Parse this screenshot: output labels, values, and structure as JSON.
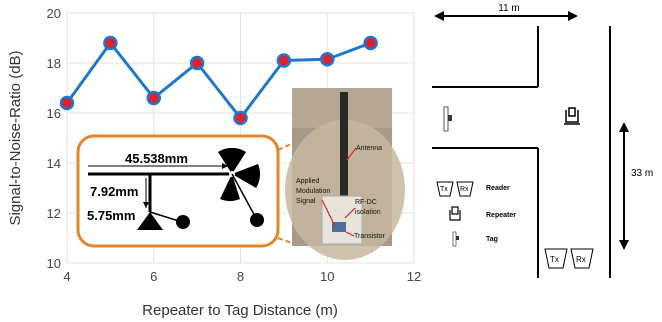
{
  "chart_data": {
    "type": "line",
    "xlabel": "Repeater to Tag Distance (m)",
    "ylabel": "Signal-to-Noise-Ratio (dB)",
    "xlim": [
      4,
      12
    ],
    "ylim": [
      10,
      20
    ],
    "xticks": [
      "4",
      "6",
      "8",
      "10",
      "12"
    ],
    "yticks": [
      "10",
      "12",
      "14",
      "16",
      "18",
      "20"
    ],
    "grid": true,
    "series": [
      {
        "x": [
          4,
          5,
          6,
          7,
          8,
          9,
          10,
          11
        ],
        "values": [
          16.4,
          18.8,
          16.6,
          18.0,
          15.8,
          18.1,
          18.15,
          18.8
        ],
        "line_color": "#1f77c9",
        "marker_color": "#e0202a"
      }
    ]
  },
  "inset": {
    "dim_width": "45.538mm",
    "dim_height1": "7.92mm",
    "dim_height2": "5.75mm",
    "border_color": "#e0862e"
  },
  "photo": {
    "labels": {
      "antenna": "Antenna",
      "applied": "Applied",
      "modulation": "Modulation",
      "signal": "Signal",
      "rfdc1": "RF-DC",
      "rfdc2": "isolation",
      "transistor": "Transistor"
    }
  },
  "floorplan": {
    "width_label": "11 m",
    "height_label": "33 m",
    "legend": {
      "reader": "Reader",
      "repeater": "Repeater",
      "tag": "Tag",
      "tx": "Tx",
      "rx": "Rx"
    }
  }
}
